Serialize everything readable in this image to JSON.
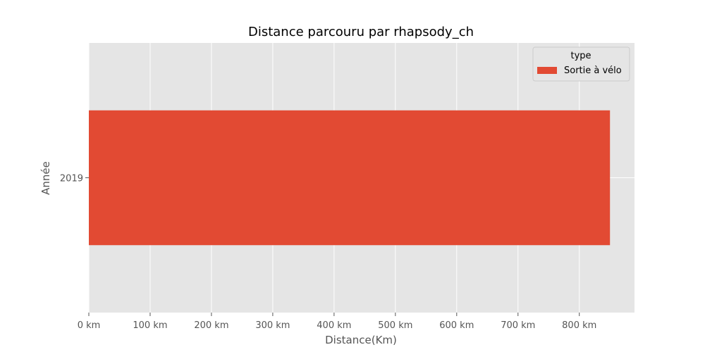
{
  "chart_data": {
    "type": "bar",
    "orientation": "horizontal",
    "title": "Distance parcouru par rhapsody_ch",
    "xlabel": "Distance(Km)",
    "ylabel": "Année",
    "categories": [
      "2019"
    ],
    "series": [
      {
        "name": "Sortie à vélo",
        "values": [
          850
        ],
        "color": "#e24a33"
      }
    ],
    "xlim": [
      0,
      890
    ],
    "x_ticks": [
      0,
      100,
      200,
      300,
      400,
      500,
      600,
      700,
      800
    ],
    "x_tick_labels": [
      "0 km",
      "100 km",
      "200 km",
      "300 km",
      "400 km",
      "500 km",
      "600 km",
      "700 km",
      "800 km"
    ],
    "legend": {
      "title": "type",
      "placement": "top-right"
    },
    "grid": true,
    "background": "#e5e5e5",
    "grid_color": "#ffffff"
  }
}
